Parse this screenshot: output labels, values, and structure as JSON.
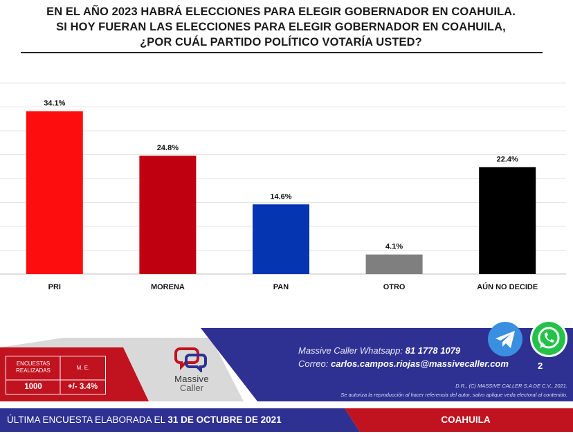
{
  "title_lines": [
    "EN EL AÑO 2023 HABRÁ ELECCIONES PARA ELEGIR GOBERNADOR EN COAHUILA.",
    "SI HOY FUERAN LAS ELECCIONES PARA ELEGIR GOBERNADOR EN COAHUILA,",
    "¿POR CUÁL PARTIDO POLÍTICO VOTARÍA USTED?"
  ],
  "chart_data": {
    "type": "bar",
    "categories": [
      "PRI",
      "MORENA",
      "PAN",
      "OTRO",
      "AÚN NO DECIDE"
    ],
    "values": [
      34.1,
      24.8,
      14.6,
      4.1,
      22.4
    ],
    "data_labels": [
      "34.1%",
      "24.8%",
      "14.6%",
      "4.1%",
      "22.4%"
    ],
    "colors": [
      "#fd0d0d",
      "#bf0010",
      "#0535b0",
      "#7f7f7f",
      "#000000"
    ],
    "ylim": [
      0,
      40
    ],
    "grid": true,
    "title": "",
    "xlabel": "",
    "ylabel": ""
  },
  "stats": {
    "surveys_label": "ENCUESTAS REALIZADAS",
    "surveys_value": "1000",
    "me_label": "M. E.",
    "me_value": "+/- 3.4%"
  },
  "logo": {
    "line1": "Massive",
    "line2": "Caller"
  },
  "contact": {
    "whatsapp_label": "Massive Caller Whatsapp:",
    "whatsapp_number": "81 1778 1079",
    "email_label": "Correo:",
    "email": "carlos.campos.riojas@massivecaller.com",
    "page_number": "2"
  },
  "legal": {
    "line1": "D.R., (C) MASSIVE CALLER S.A DE C.V., 2021.",
    "line2": "Se autoriza la reproducción al hacer referencia del autor, salvo aplique veda electoral al contenido."
  },
  "bottom_bar": {
    "label": "ÚLTIMA ENCUESTA ELABORADA EL",
    "date": "31 DE OCTUBRE DE 2021",
    "region": "COAHUILA"
  },
  "icons": {
    "telegram": "telegram-icon",
    "whatsapp": "whatsapp-icon"
  },
  "theme": {
    "navy": "#2e3192",
    "red": "#c1121f",
    "gray": "#e6e6e6"
  }
}
